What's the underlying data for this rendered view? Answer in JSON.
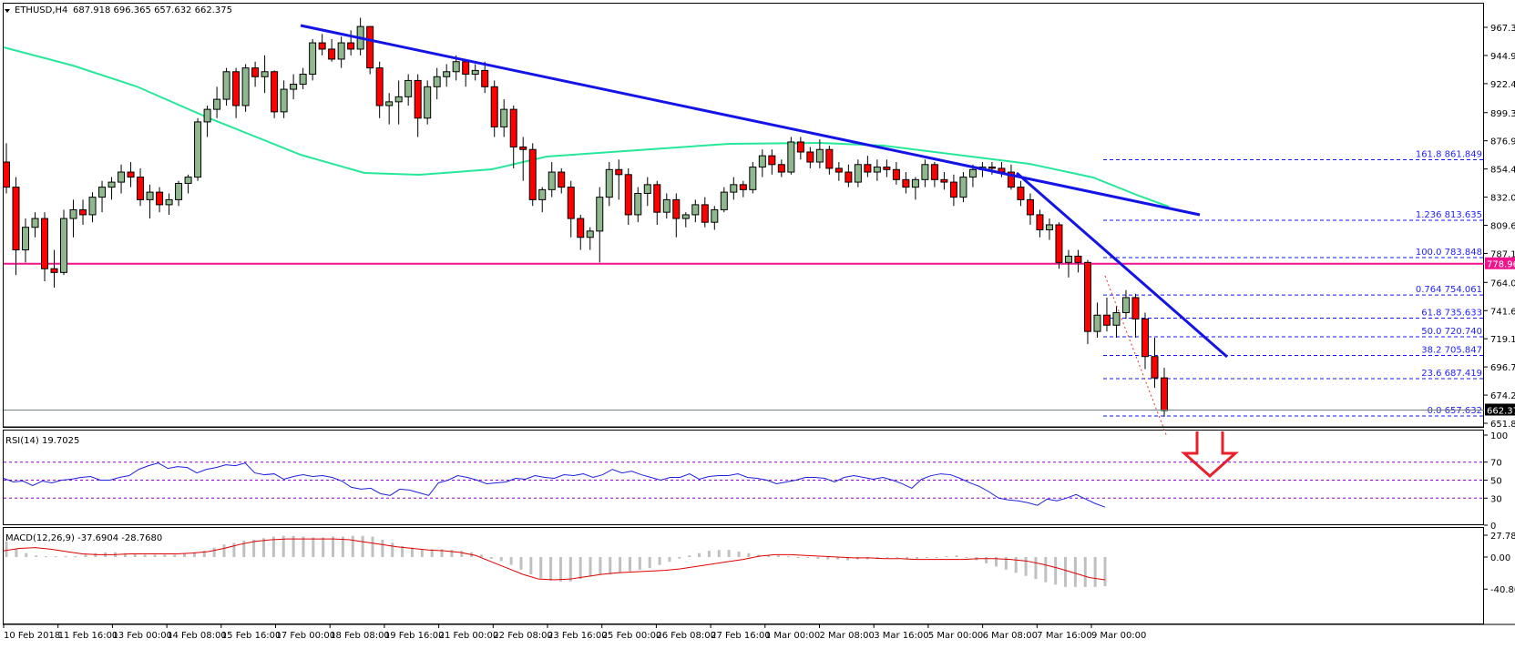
{
  "header": {
    "symbol": "ETHUSD,H4",
    "ohlc": "687.918 696.365 657.632 662.375",
    "dropdown_icon": "triangle-down-icon"
  },
  "colors": {
    "bull_body": "#8fb88f",
    "bear_body": "#ff0000",
    "wick": "#000000",
    "ma": "#26e89a",
    "trendline": "#1414e6",
    "support": "#f0148c",
    "fib": "#1414ff",
    "rsi_line": "#1f1fdc",
    "rsi_levels": "#9400d3",
    "macd_hist": "#c0c0c0",
    "macd_signal": "#e00000",
    "arrow": "#e8202a",
    "price_tag_bg": "#000000",
    "support_tag_bg": "#f0148c"
  },
  "price_axis": {
    "ticks": [
      "967.370",
      "944.930",
      "922.490",
      "899.370",
      "876.930",
      "854.490",
      "832.050",
      "809.610",
      "787.170",
      "764.050",
      "741.610",
      "719.170",
      "696.730",
      "674.290",
      "651.850"
    ],
    "current_price_tag": "662.375",
    "support_tag": "778.968"
  },
  "fib_levels": [
    {
      "label": "161.8  861.849",
      "value": 861.849
    },
    {
      "label": "1.236 813.635",
      "value": 813.635
    },
    {
      "label": "100.0  783.848",
      "value": 783.848
    },
    {
      "label": "0.764  754.061",
      "value": 754.061
    },
    {
      "label": "61.8  735.633",
      "value": 735.633
    },
    {
      "label": "50.0 720.740",
      "value": 720.74
    },
    {
      "label": "38.2  705.847",
      "value": 705.847
    },
    {
      "label": "23.6  687.419",
      "value": 687.419
    },
    {
      "label": "0.0  657.632",
      "value": 657.632
    }
  ],
  "rsi": {
    "title": "RSI(14) 19.7025",
    "ticks": [
      "100",
      "70",
      "50",
      "30",
      "0"
    ]
  },
  "macd": {
    "title": "MACD(12,26,9) -37.6904 -28.7680",
    "ticks": [
      "27.789",
      "0.00",
      "-40.8085"
    ]
  },
  "time_axis": {
    "labels": [
      "10 Feb 2018",
      "11 Feb 16:00",
      "13 Feb 00:00",
      "14 Feb 08:00",
      "15 Feb 16:00",
      "17 Feb 00:00",
      "18 Feb 08:00",
      "19 Feb 16:00",
      "21 Feb 00:00",
      "22 Feb 08:00",
      "23 Feb 16:00",
      "25 Feb 00:00",
      "26 Feb 08:00",
      "27 Feb 16:00",
      "1 Mar 00:00",
      "2 Mar 08:00",
      "3 Mar 16:00",
      "5 Mar 00:00",
      "6 Mar 08:00",
      "7 Mar 16:00",
      "9 Mar 00:00"
    ]
  },
  "chart_data": {
    "type": "candlestick",
    "title": "ETHUSD,H4",
    "ohlc_last": {
      "open": 687.918,
      "high": 696.365,
      "low": 657.632,
      "close": 662.375
    },
    "ylim": [
      651.85,
      975
    ],
    "support_level": 778.968,
    "indicators": {
      "moving_average": "green curve",
      "rsi_period": 14,
      "rsi_value": 19.7025,
      "rsi_levels": [
        70,
        50,
        30
      ],
      "macd_params": [
        12,
        26,
        9
      ],
      "macd_values": [
        -37.6904,
        -28.768
      ],
      "macd_ylim": [
        -40.8085,
        27.789
      ]
    },
    "candles": [
      [
        860,
        875,
        835,
        840
      ],
      [
        840,
        848,
        770,
        790
      ],
      [
        790,
        815,
        780,
        808
      ],
      [
        808,
        820,
        800,
        815
      ],
      [
        815,
        820,
        765,
        775
      ],
      [
        775,
        790,
        760,
        772
      ],
      [
        772,
        822,
        770,
        815
      ],
      [
        815,
        830,
        800,
        822
      ],
      [
        822,
        830,
        810,
        818
      ],
      [
        818,
        836,
        812,
        832
      ],
      [
        832,
        845,
        820,
        840
      ],
      [
        840,
        848,
        830,
        844
      ],
      [
        844,
        858,
        835,
        852
      ],
      [
        852,
        860,
        840,
        848
      ],
      [
        848,
        855,
        825,
        830
      ],
      [
        830,
        842,
        815,
        836
      ],
      [
        836,
        840,
        820,
        826
      ],
      [
        826,
        835,
        818,
        830
      ],
      [
        830,
        845,
        825,
        843
      ],
      [
        843,
        850,
        835,
        848
      ],
      [
        848,
        895,
        845,
        892
      ],
      [
        892,
        905,
        880,
        902
      ],
      [
        902,
        920,
        895,
        910
      ],
      [
        910,
        935,
        905,
        932
      ],
      [
        932,
        935,
        895,
        905
      ],
      [
        905,
        938,
        900,
        935
      ],
      [
        935,
        940,
        920,
        928
      ],
      [
        928,
        945,
        915,
        932
      ],
      [
        932,
        933,
        895,
        900
      ],
      [
        900,
        925,
        895,
        918
      ],
      [
        918,
        930,
        910,
        922
      ],
      [
        922,
        935,
        918,
        930
      ],
      [
        930,
        958,
        925,
        955
      ],
      [
        955,
        962,
        945,
        950
      ],
      [
        950,
        958,
        940,
        942
      ],
      [
        942,
        960,
        935,
        955
      ],
      [
        955,
        965,
        945,
        950
      ],
      [
        950,
        975,
        945,
        968
      ],
      [
        968,
        960,
        930,
        935
      ],
      [
        935,
        940,
        895,
        905
      ],
      [
        905,
        915,
        890,
        908
      ],
      [
        908,
        925,
        890,
        912
      ],
      [
        912,
        930,
        905,
        925
      ],
      [
        925,
        930,
        880,
        895
      ],
      [
        895,
        925,
        890,
        920
      ],
      [
        920,
        935,
        910,
        928
      ],
      [
        928,
        938,
        920,
        932
      ],
      [
        932,
        945,
        925,
        940
      ],
      [
        940,
        942,
        920,
        930
      ],
      [
        930,
        938,
        925,
        933
      ],
      [
        933,
        940,
        915,
        920
      ],
      [
        920,
        925,
        880,
        888
      ],
      [
        888,
        910,
        880,
        902
      ],
      [
        902,
        905,
        855,
        872
      ],
      [
        872,
        880,
        845,
        870
      ],
      [
        870,
        875,
        825,
        830
      ],
      [
        830,
        840,
        820,
        838
      ],
      [
        838,
        860,
        832,
        852
      ],
      [
        852,
        855,
        835,
        840
      ],
      [
        840,
        845,
        800,
        815
      ],
      [
        815,
        818,
        790,
        800
      ],
      [
        800,
        808,
        790,
        805
      ],
      [
        805,
        840,
        780,
        832
      ],
      [
        832,
        860,
        825,
        854
      ],
      [
        854,
        862,
        830,
        850
      ],
      [
        850,
        855,
        810,
        818
      ],
      [
        818,
        840,
        812,
        835
      ],
      [
        835,
        848,
        825,
        842
      ],
      [
        842,
        845,
        810,
        820
      ],
      [
        820,
        835,
        815,
        830
      ],
      [
        830,
        835,
        800,
        815
      ],
      [
        815,
        820,
        808,
        818
      ],
      [
        818,
        830,
        812,
        826
      ],
      [
        826,
        832,
        808,
        812
      ],
      [
        812,
        825,
        806,
        822
      ],
      [
        822,
        840,
        820,
        836
      ],
      [
        836,
        848,
        830,
        842
      ],
      [
        842,
        845,
        832,
        838
      ],
      [
        838,
        860,
        835,
        856
      ],
      [
        856,
        870,
        848,
        865
      ],
      [
        865,
        870,
        850,
        858
      ],
      [
        858,
        862,
        848,
        852
      ],
      [
        852,
        880,
        850,
        876
      ],
      [
        876,
        880,
        862,
        868
      ],
      [
        868,
        872,
        855,
        860
      ],
      [
        860,
        878,
        855,
        870
      ],
      [
        870,
        873,
        850,
        855
      ],
      [
        855,
        860,
        845,
        852
      ],
      [
        852,
        858,
        840,
        844
      ],
      [
        844,
        862,
        840,
        858
      ],
      [
        858,
        865,
        848,
        852
      ],
      [
        852,
        862,
        845,
        856
      ],
      [
        856,
        862,
        848,
        854
      ],
      [
        854,
        860,
        842,
        846
      ],
      [
        846,
        852,
        835,
        840
      ],
      [
        840,
        848,
        830,
        846
      ],
      [
        846,
        862,
        840,
        858
      ],
      [
        858,
        860,
        840,
        846
      ],
      [
        846,
        852,
        838,
        844
      ],
      [
        844,
        850,
        825,
        832
      ],
      [
        832,
        852,
        828,
        848
      ],
      [
        848,
        858,
        840,
        854
      ],
      [
        854,
        860,
        848,
        856
      ],
      [
        856,
        860,
        850,
        855
      ],
      [
        855,
        860,
        848,
        852
      ],
      [
        852,
        858,
        838,
        840
      ],
      [
        840,
        845,
        825,
        830
      ],
      [
        830,
        835,
        810,
        818
      ],
      [
        818,
        822,
        800,
        806
      ],
      [
        806,
        815,
        798,
        810
      ],
      [
        810,
        812,
        775,
        780
      ],
      [
        780,
        790,
        768,
        785
      ],
      [
        785,
        790,
        772,
        780
      ],
      [
        780,
        782,
        715,
        725
      ],
      [
        725,
        748,
        720,
        738
      ],
      [
        738,
        752,
        725,
        730
      ],
      [
        730,
        745,
        720,
        740
      ],
      [
        740,
        758,
        735,
        752
      ],
      [
        752,
        755,
        720,
        735
      ],
      [
        735,
        740,
        695,
        705
      ],
      [
        705,
        720,
        680,
        688
      ],
      [
        688,
        696,
        657,
        662
      ]
    ]
  }
}
